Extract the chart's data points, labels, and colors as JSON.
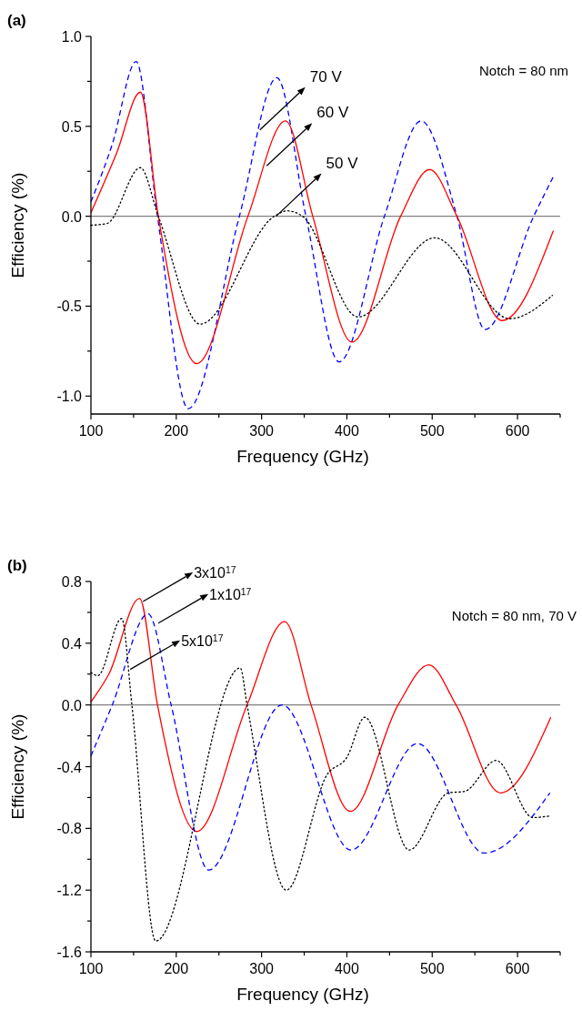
{
  "chart_data": [
    {
      "type": "line",
      "title": "(a)",
      "xlabel": "Frequency (GHz)",
      "ylabel": "Efficiency (%)",
      "xlim": [
        100,
        650
      ],
      "ylim": [
        -1.1,
        1.0
      ],
      "xticks": [
        100,
        {
          "value": 150,
          "label": null
        },
        200,
        {
          "value": 250,
          "label": null
        },
        300,
        {
          "value": 350,
          "label": null
        },
        400,
        {
          "value": 450,
          "label": null
        },
        500,
        {
          "value": 550,
          "label": null
        },
        600,
        {
          "value": 650,
          "label": null
        }
      ],
      "yticks": [
        {
          "value": 1.0,
          "label": "1.0"
        },
        {
          "value": 0.75,
          "label": null
        },
        0.5,
        {
          "value": 0.25,
          "label": null
        },
        {
          "value": 0,
          "label": "0.0"
        },
        {
          "value": -0.25,
          "label": null
        },
        -0.5,
        {
          "value": -0.75,
          "label": null
        },
        {
          "value": -1.0,
          "label": "-1.0"
        }
      ],
      "grid": false,
      "marker": "none",
      "ref_lines": [
        {
          "axis": "y",
          "value": 0,
          "color": "#808080"
        }
      ],
      "annotations": [
        "Notch = 80 nm",
        {
          "text": "70 V",
          "x": 298,
          "y": 0.48
        },
        {
          "text": "60 V",
          "x": 306,
          "y": 0.28
        },
        {
          "text": "50 V",
          "x": 317,
          "y": 0.0
        }
      ],
      "series": [
        {
          "color": "#0000ff",
          "line_style": "dashed",
          "x": [
            100,
            125,
            153,
            178,
            214,
            274,
            318,
            352,
            391,
            444,
            487,
            529,
            562,
            619,
            642
          ],
          "values": [
            0.08,
            0.4,
            0.86,
            0,
            -1.07,
            0,
            0.77,
            0,
            -0.81,
            0,
            0.53,
            0,
            -0.63,
            0,
            0.22
          ]
        },
        {
          "color": "#ff0000",
          "line_style": "solid",
          "x": [
            100,
            130,
            158,
            179,
            224,
            284,
            328,
            360,
            406,
            463,
            497,
            529,
            582,
            642
          ],
          "values": [
            0.02,
            0.35,
            0.69,
            0,
            -0.82,
            0,
            0.53,
            0,
            -0.7,
            0,
            0.26,
            0,
            -0.58,
            -0.08
          ]
        },
        {
          "color": "#000000",
          "line_style": "dotted",
          "x": [
            100,
            119,
            158,
            179,
            228,
            315,
            330,
            348,
            413,
            503,
            591,
            641
          ],
          "values": [
            -0.05,
            -0.04,
            0.27,
            0,
            -0.6,
            0,
            0.03,
            0,
            -0.56,
            -0.12,
            -0.57,
            -0.44
          ]
        }
      ]
    },
    {
      "type": "line",
      "title": "(b)",
      "xlabel": "Frequency (GHz)",
      "ylabel": "Efficiency (%)",
      "xlim": [
        100,
        650
      ],
      "ylim": [
        -1.6,
        0.8
      ],
      "xticks": [
        100,
        {
          "value": 150,
          "label": null
        },
        200,
        {
          "value": 250,
          "label": null
        },
        300,
        {
          "value": 350,
          "label": null
        },
        400,
        {
          "value": 450,
          "label": null
        },
        500,
        {
          "value": 550,
          "label": null
        },
        600,
        {
          "value": 650,
          "label": null
        }
      ],
      "yticks": [
        0.8,
        {
          "value": 0.6,
          "label": null
        },
        0.4,
        {
          "value": 0.2,
          "label": null
        },
        {
          "value": 0,
          "label": "0.0"
        },
        {
          "value": -0.2,
          "label": null
        },
        -0.4,
        {
          "value": -0.6,
          "label": null
        },
        -0.8,
        {
          "value": -1.0,
          "label": null
        },
        -1.2,
        {
          "value": -1.4,
          "label": null
        },
        -1.6
      ],
      "grid": false,
      "marker": "none",
      "ref_lines": [
        {
          "axis": "y",
          "value": 0,
          "color": "#808080"
        }
      ],
      "annotations": [
        "Notch = 80 nm, 70 V",
        {
          "text": "3x10$^{17}$",
          "x": 161,
          "y": 0.67
        },
        {
          "text": "1x10$^{17}$",
          "x": 179,
          "y": 0.53
        },
        {
          "text": "5x10$^{17}$",
          "x": 146,
          "y": 0.23
        }
      ],
      "series": [
        {
          "color": "#ff0000",
          "line_style": "solid",
          "x": [
            100,
            121,
            157,
            178,
            224,
            283,
            327,
            358,
            404,
            460,
            496,
            528,
            580,
            639
          ],
          "values": [
            0.02,
            0.2,
            0.69,
            0,
            -0.82,
            0,
            0.54,
            0,
            -0.69,
            0,
            0.26,
            0,
            -0.57,
            -0.08
          ]
        },
        {
          "color": "#0000ff",
          "line_style": "dashed",
          "x": [
            100,
            125,
            167,
            194,
            238,
            324,
            405,
            483,
            561,
            638
          ],
          "values": [
            -0.33,
            0,
            0.59,
            0,
            -1.07,
            0,
            -0.94,
            -0.25,
            -0.96,
            -0.57
          ]
        },
        {
          "color": "#000000",
          "line_style": "dotted",
          "x": [
            100,
            108,
            136,
            148,
            176,
            275,
            283,
            329,
            377,
            400,
            421,
            473,
            519,
            538,
            575,
            618,
            637
          ],
          "values": [
            0.21,
            0.19,
            0.56,
            0,
            -1.53,
            0.24,
            0,
            -1.2,
            -0.45,
            -0.34,
            -0.08,
            -0.94,
            -0.57,
            -0.56,
            -0.36,
            -0.73,
            -0.72
          ]
        }
      ]
    }
  ]
}
